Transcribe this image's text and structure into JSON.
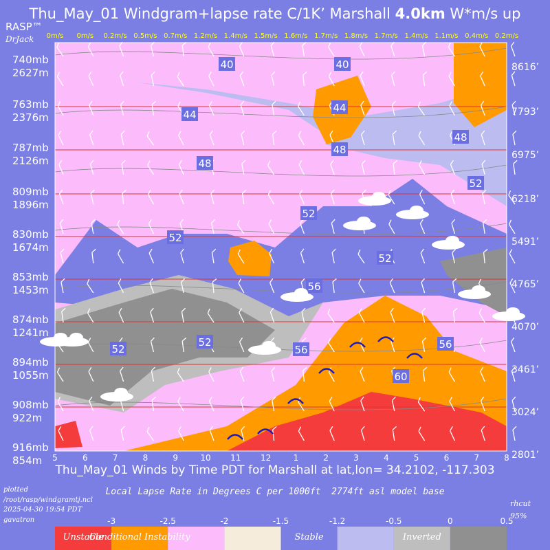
{
  "header": {
    "title_prefix": "Thu_May_01 Windgram+lapse rate C/1K’  Marshall",
    "title_bold": "4.0km",
    "title_suffix": "W*m/s up",
    "brand": "RASP™",
    "author": "DrJack"
  },
  "footer": {
    "bottom_title": "Thu_May_01 Winds by Time PDT for Marshall at lat,lon= 34.2102, -117.303",
    "legend_caption": "Local Lapse Rate in Degrees C per 1000ft  2774ft asl model base",
    "plot_info": [
      "plotted",
      "/root/rasp/windgramtj.ncl",
      "2025-04-30 19:54 PDT",
      "gavatron"
    ],
    "rhcut": [
      "rhcut",
      "95%"
    ]
  },
  "chart_data": {
    "type": "heatmap",
    "x": [
      "5",
      "6",
      "7",
      "8",
      "9",
      "10",
      "11",
      "12",
      "1",
      "2",
      "3",
      "4",
      "5",
      "6",
      "7",
      "8"
    ],
    "xlabel": "Thu_May_01 Winds by Time PDT for Marshall at lat,lon= 34.2102, -117.303",
    "wstar_top_labels": [
      "0m/s",
      "0m/s",
      "0.2m/s",
      "0.5m/s",
      "0.7m/s",
      "1.2m/s",
      "1.4m/s",
      "1.5m/s",
      "1.6m/s",
      "1.7m/s",
      "1.8m/s",
      "1.7m/s",
      "1.4m/s",
      "1.1m/s",
      "0.4m/s",
      "0.2m/s"
    ],
    "wstar_values": [
      0,
      0,
      0.2,
      0.5,
      0.7,
      1.2,
      1.4,
      1.5,
      1.6,
      1.7,
      1.8,
      1.7,
      1.4,
      1.1,
      0.4,
      0.2
    ],
    "left_axis": [
      {
        "p": "740mb",
        "h": "2627m"
      },
      {
        "p": "763mb",
        "h": "2376m"
      },
      {
        "p": "787mb",
        "h": "2126m"
      },
      {
        "p": "809mb",
        "h": "1896m"
      },
      {
        "p": "830mb",
        "h": "1674m"
      },
      {
        "p": "853mb",
        "h": "1453m"
      },
      {
        "p": "874mb",
        "h": "1241m"
      },
      {
        "p": "894mb",
        "h": "1055m"
      },
      {
        "p": "908mb",
        "h": "922m"
      },
      {
        "p": "916mb",
        "h": "854m"
      }
    ],
    "right_axis": [
      "8616’",
      "7793’",
      "6975’",
      "6218’",
      "5491’",
      "4765’",
      "4070’",
      "3461’",
      "3024’",
      "2801’"
    ],
    "wind_speed_labels": [
      {
        "v": "40"
      },
      {
        "v": "40"
      },
      {
        "v": "44"
      },
      {
        "v": "44"
      },
      {
        "v": "48"
      },
      {
        "v": "48"
      },
      {
        "v": "48"
      },
      {
        "v": "52"
      },
      {
        "v": "52"
      },
      {
        "v": "52"
      },
      {
        "v": "52"
      },
      {
        "v": "52"
      },
      {
        "v": "52"
      },
      {
        "v": "56"
      },
      {
        "v": "56"
      },
      {
        "v": "56"
      },
      {
        "v": "60"
      }
    ],
    "legend": {
      "ticks": [
        "-3",
        "-2.5",
        "-2",
        "-1.5",
        "-1.2",
        "-0.5",
        "0",
        "0.5"
      ],
      "categories": [
        {
          "label": "Unstable",
          "color": "#f53c3c"
        },
        {
          "label": "Conditional Instability",
          "color": "#ff9a00"
        },
        {
          "label": "",
          "color": "#fcbcfc"
        },
        {
          "label": "",
          "color": "#f5ecdc"
        },
        {
          "label": "Stable",
          "color": "#7b7fe3"
        },
        {
          "label": "",
          "color": "#bcbcf0"
        },
        {
          "label": "Inverted",
          "color": "#bebebe"
        },
        {
          "label": "",
          "color": "#909090"
        }
      ]
    }
  }
}
